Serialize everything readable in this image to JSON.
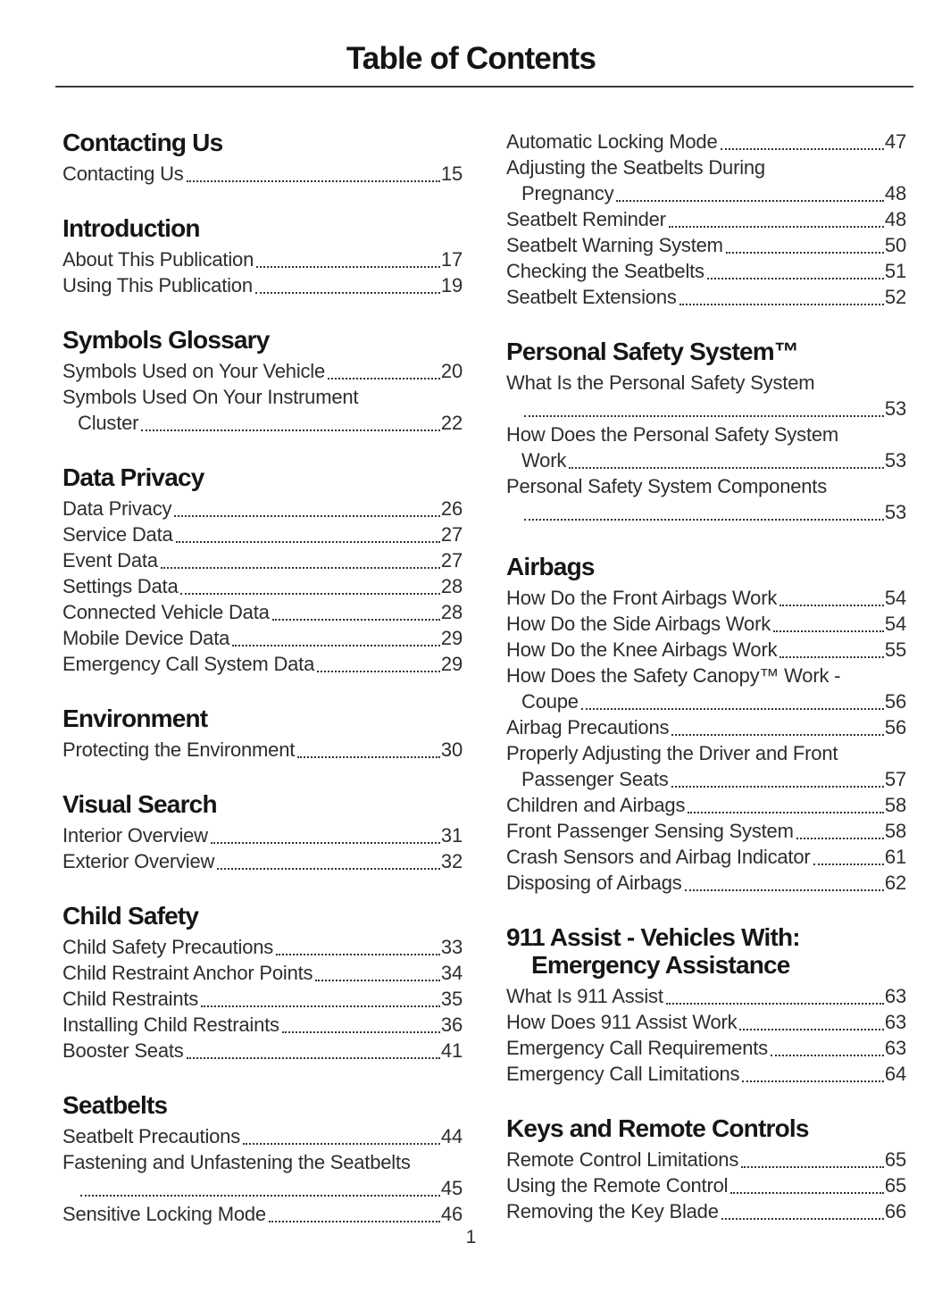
{
  "page": {
    "title": "Table of Contents",
    "page_number": "1"
  },
  "left_column": {
    "sections": [
      {
        "heading_lines": [
          "Contacting Us"
        ],
        "entries": [
          {
            "lines": [
              "Contacting Us"
            ],
            "page": "15"
          }
        ]
      },
      {
        "heading_lines": [
          "Introduction"
        ],
        "entries": [
          {
            "lines": [
              "About This Publication"
            ],
            "page": "17"
          },
          {
            "lines": [
              "Using This Publication"
            ],
            "page": "19"
          }
        ]
      },
      {
        "heading_lines": [
          "Symbols Glossary"
        ],
        "entries": [
          {
            "lines": [
              "Symbols Used on Your Vehicle"
            ],
            "page": "20"
          },
          {
            "lines": [
              "Symbols Used On Your Instrument",
              "Cluster"
            ],
            "page": "22"
          }
        ]
      },
      {
        "heading_lines": [
          "Data Privacy"
        ],
        "entries": [
          {
            "lines": [
              "Data Privacy"
            ],
            "page": "26"
          },
          {
            "lines": [
              "Service Data"
            ],
            "page": "27"
          },
          {
            "lines": [
              "Event Data"
            ],
            "page": "27"
          },
          {
            "lines": [
              "Settings Data"
            ],
            "page": "28"
          },
          {
            "lines": [
              "Connected Vehicle Data"
            ],
            "page": "28"
          },
          {
            "lines": [
              "Mobile Device Data"
            ],
            "page": "29"
          },
          {
            "lines": [
              "Emergency Call System Data"
            ],
            "page": "29"
          }
        ]
      },
      {
        "heading_lines": [
          "Environment"
        ],
        "entries": [
          {
            "lines": [
              "Protecting the Environment"
            ],
            "page": "30"
          }
        ]
      },
      {
        "heading_lines": [
          "Visual Search"
        ],
        "entries": [
          {
            "lines": [
              "Interior Overview"
            ],
            "page": "31"
          },
          {
            "lines": [
              "Exterior Overview"
            ],
            "page": "32"
          }
        ]
      },
      {
        "heading_lines": [
          "Child Safety"
        ],
        "entries": [
          {
            "lines": [
              "Child Safety Precautions"
            ],
            "page": "33"
          },
          {
            "lines": [
              "Child Restraint Anchor Points"
            ],
            "page": "34"
          },
          {
            "lines": [
              "Child Restraints"
            ],
            "page": "35"
          },
          {
            "lines": [
              "Installing Child Restraints"
            ],
            "page": "36"
          },
          {
            "lines": [
              "Booster Seats"
            ],
            "page": "41"
          }
        ]
      },
      {
        "heading_lines": [
          "Seatbelts"
        ],
        "entries": [
          {
            "lines": [
              "Seatbelt Precautions"
            ],
            "page": "44"
          },
          {
            "lines": [
              "Fastening and Unfastening the Seatbelts",
              ""
            ],
            "page": "45"
          },
          {
            "lines": [
              "Sensitive Locking Mode"
            ],
            "page": "46"
          }
        ]
      }
    ]
  },
  "right_column": {
    "sections": [
      {
        "heading_lines": [],
        "entries": [
          {
            "lines": [
              "Automatic Locking Mode"
            ],
            "page": "47"
          },
          {
            "lines": [
              "Adjusting the Seatbelts During",
              "Pregnancy"
            ],
            "page": "48"
          },
          {
            "lines": [
              "Seatbelt Reminder"
            ],
            "page": "48"
          },
          {
            "lines": [
              "Seatbelt Warning System"
            ],
            "page": "50"
          },
          {
            "lines": [
              "Checking the Seatbelts"
            ],
            "page": "51"
          },
          {
            "lines": [
              "Seatbelt Extensions"
            ],
            "page": "52"
          }
        ]
      },
      {
        "heading_lines": [
          "Personal Safety System™"
        ],
        "entries": [
          {
            "lines": [
              "What Is the Personal Safety System",
              ""
            ],
            "page": "53"
          },
          {
            "lines": [
              "How Does the Personal Safety System",
              "Work"
            ],
            "page": "53"
          },
          {
            "lines": [
              "Personal Safety System Components",
              ""
            ],
            "page": "53"
          }
        ]
      },
      {
        "heading_lines": [
          "Airbags"
        ],
        "entries": [
          {
            "lines": [
              "How Do the Front Airbags Work"
            ],
            "page": "54"
          },
          {
            "lines": [
              "How Do the Side Airbags Work"
            ],
            "page": "54"
          },
          {
            "lines": [
              "How Do the Knee Airbags Work"
            ],
            "page": "55"
          },
          {
            "lines": [
              "How Does the Safety Canopy™ Work -",
              "Coupe"
            ],
            "page": "56"
          },
          {
            "lines": [
              "Airbag Precautions"
            ],
            "page": "56"
          },
          {
            "lines": [
              "Properly Adjusting the Driver and Front",
              "Passenger Seats"
            ],
            "page": "57"
          },
          {
            "lines": [
              "Children and Airbags"
            ],
            "page": "58"
          },
          {
            "lines": [
              "Front Passenger Sensing System"
            ],
            "page": "58"
          },
          {
            "lines": [
              "Crash Sensors and Airbag Indicator"
            ],
            "page": "61"
          },
          {
            "lines": [
              "Disposing of Airbags"
            ],
            "page": "62"
          }
        ]
      },
      {
        "heading_lines": [
          "911 Assist - Vehicles With:",
          "Emergency Assistance"
        ],
        "entries": [
          {
            "lines": [
              "What Is 911 Assist"
            ],
            "page": "63"
          },
          {
            "lines": [
              "How Does 911 Assist Work"
            ],
            "page": "63"
          },
          {
            "lines": [
              "Emergency Call Requirements"
            ],
            "page": "63"
          },
          {
            "lines": [
              "Emergency Call Limitations"
            ],
            "page": "64"
          }
        ]
      },
      {
        "heading_lines": [
          "Keys and Remote Controls"
        ],
        "entries": [
          {
            "lines": [
              "Remote Control Limitations"
            ],
            "page": "65"
          },
          {
            "lines": [
              "Using the Remote Control"
            ],
            "page": "65"
          },
          {
            "lines": [
              "Removing the Key Blade"
            ],
            "page": "66"
          }
        ]
      }
    ]
  }
}
